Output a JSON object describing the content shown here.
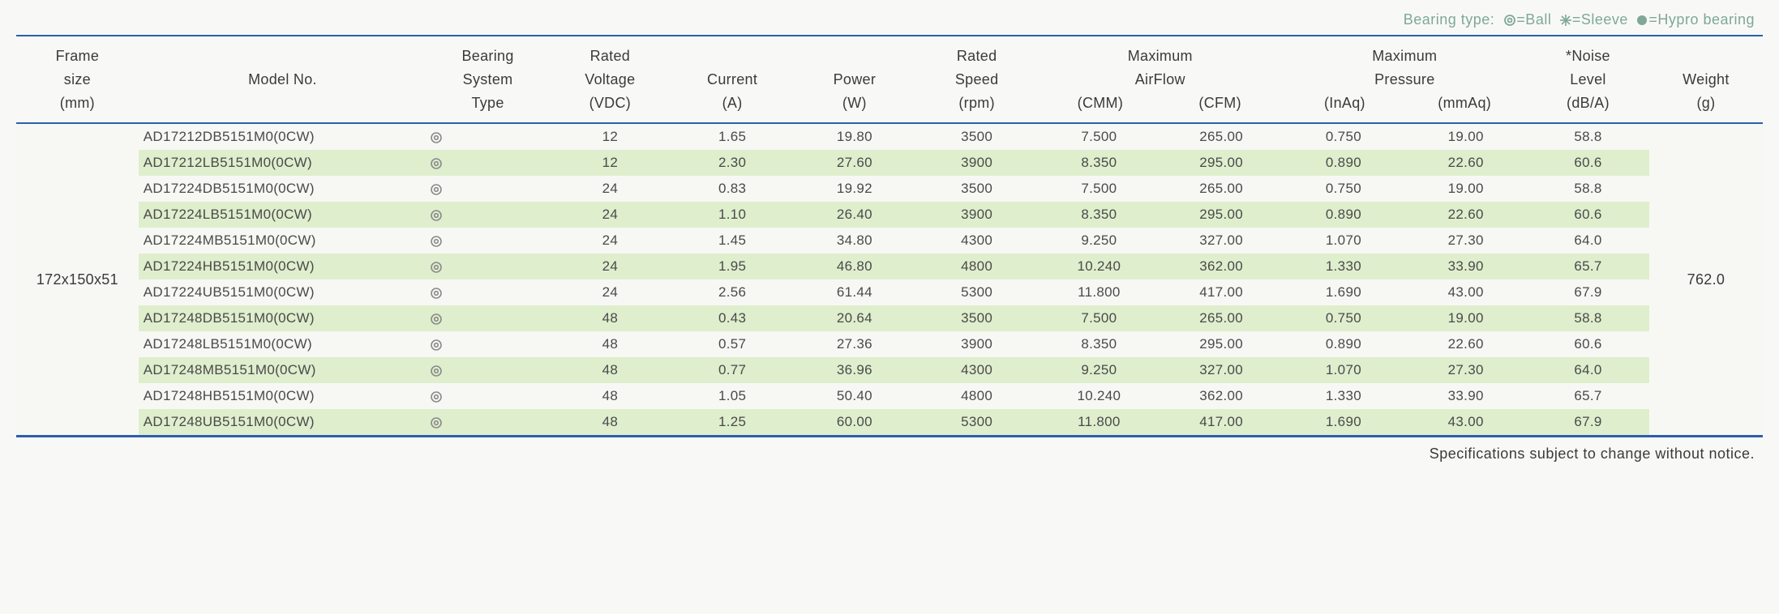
{
  "legend": {
    "prefix": "Bearing type:",
    "ball": "=Ball",
    "sleeve": "=Sleeve",
    "hypro": "=Hypro bearing"
  },
  "headers": {
    "frame": {
      "l1": "Frame",
      "l2": "size",
      "l3": "(mm)"
    },
    "model": {
      "l1": "Model No."
    },
    "bearing": {
      "l1": "Bearing",
      "l2": "System",
      "l3": "Type"
    },
    "voltage": {
      "l1": "Rated",
      "l2": "Voltage",
      "l3": "(VDC)"
    },
    "current": {
      "l1": "Current",
      "l2": "(A)"
    },
    "power": {
      "l1": "Power",
      "l2": "(W)"
    },
    "speed": {
      "l1": "Rated",
      "l2": "Speed",
      "l3": "(rpm)"
    },
    "airflow": {
      "group": "Maximum",
      "group2": "AirFlow",
      "cmm": "(CMM)",
      "cfm": "(CFM)"
    },
    "pressure": {
      "group": "Maximum",
      "group2": "Pressure",
      "inaq": "(InAq)",
      "mmaq": "(mmAq)"
    },
    "noise": {
      "l1": "*Noise",
      "l2": "Level",
      "l3": "(dB/A)"
    },
    "weight": {
      "l1": "Weight",
      "l2": "(g)"
    }
  },
  "frame_size": "172x150x51",
  "weight": "762.0",
  "rows": [
    {
      "model": "AD17212DB5151M0(0CW)",
      "voltage": "12",
      "current": "1.65",
      "power": "19.80",
      "speed": "3500",
      "cmm": "7.500",
      "cfm": "265.00",
      "inaq": "0.750",
      "mmaq": "19.00",
      "noise": "58.8"
    },
    {
      "model": "AD17212LB5151M0(0CW)",
      "voltage": "12",
      "current": "2.30",
      "power": "27.60",
      "speed": "3900",
      "cmm": "8.350",
      "cfm": "295.00",
      "inaq": "0.890",
      "mmaq": "22.60",
      "noise": "60.6"
    },
    {
      "model": "AD17224DB5151M0(0CW)",
      "voltage": "24",
      "current": "0.83",
      "power": "19.92",
      "speed": "3500",
      "cmm": "7.500",
      "cfm": "265.00",
      "inaq": "0.750",
      "mmaq": "19.00",
      "noise": "58.8"
    },
    {
      "model": "AD17224LB5151M0(0CW)",
      "voltage": "24",
      "current": "1.10",
      "power": "26.40",
      "speed": "3900",
      "cmm": "8.350",
      "cfm": "295.00",
      "inaq": "0.890",
      "mmaq": "22.60",
      "noise": "60.6"
    },
    {
      "model": "AD17224MB5151M0(0CW)",
      "voltage": "24",
      "current": "1.45",
      "power": "34.80",
      "speed": "4300",
      "cmm": "9.250",
      "cfm": "327.00",
      "inaq": "1.070",
      "mmaq": "27.30",
      "noise": "64.0"
    },
    {
      "model": "AD17224HB5151M0(0CW)",
      "voltage": "24",
      "current": "1.95",
      "power": "46.80",
      "speed": "4800",
      "cmm": "10.240",
      "cfm": "362.00",
      "inaq": "1.330",
      "mmaq": "33.90",
      "noise": "65.7"
    },
    {
      "model": "AD17224UB5151M0(0CW)",
      "voltage": "24",
      "current": "2.56",
      "power": "61.44",
      "speed": "5300",
      "cmm": "11.800",
      "cfm": "417.00",
      "inaq": "1.690",
      "mmaq": "43.00",
      "noise": "67.9"
    },
    {
      "model": "AD17248DB5151M0(0CW)",
      "voltage": "48",
      "current": "0.43",
      "power": "20.64",
      "speed": "3500",
      "cmm": "7.500",
      "cfm": "265.00",
      "inaq": "0.750",
      "mmaq": "19.00",
      "noise": "58.8"
    },
    {
      "model": "AD17248LB5151M0(0CW)",
      "voltage": "48",
      "current": "0.57",
      "power": "27.36",
      "speed": "3900",
      "cmm": "8.350",
      "cfm": "295.00",
      "inaq": "0.890",
      "mmaq": "22.60",
      "noise": "60.6"
    },
    {
      "model": "AD17248MB5151M0(0CW)",
      "voltage": "48",
      "current": "0.77",
      "power": "36.96",
      "speed": "4300",
      "cmm": "9.250",
      "cfm": "327.00",
      "inaq": "1.070",
      "mmaq": "27.30",
      "noise": "64.0"
    },
    {
      "model": "AD17248HB5151M0(0CW)",
      "voltage": "48",
      "current": "1.05",
      "power": "50.40",
      "speed": "4800",
      "cmm": "10.240",
      "cfm": "362.00",
      "inaq": "1.330",
      "mmaq": "33.90",
      "noise": "65.7"
    },
    {
      "model": "AD17248UB5151M0(0CW)",
      "voltage": "48",
      "current": "1.25",
      "power": "60.00",
      "speed": "5300",
      "cmm": "11.800",
      "cfm": "417.00",
      "inaq": "1.690",
      "mmaq": "43.00",
      "noise": "67.9"
    }
  ],
  "bearing_marker": "◎",
  "footnote": "Specifications subject to change without notice.",
  "colors": {
    "row_even": "#dfeecd",
    "row_odd": "#f7f8f4",
    "border": "#2c5faa",
    "legend_text": "#7fa896",
    "body_text": "#3a3a3a"
  }
}
